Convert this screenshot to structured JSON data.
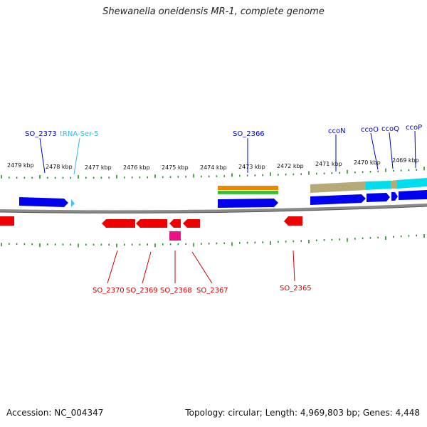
{
  "title": "Shewanella oneidensis MR-1, complete genome",
  "footer": {
    "accession": "Accession: NC_004347",
    "summary": "Topology: circular; Length: 4,969,803 bp; Genes: 4,448"
  },
  "colors": {
    "forward": "#0000ee",
    "reverse": "#ee0000",
    "trna": "#33ccee",
    "ticks": "#2a8a2a",
    "backbone": "#8a8a8a",
    "pink": "#ee1188",
    "orange": "#ee8800",
    "green": "#44bb44",
    "khaki": "#b5aa78",
    "cyan": "#00ddee"
  },
  "kbp_labels": [
    "2479 kbp",
    "2478 kbp",
    "2477 kbp",
    "2476 kbp",
    "2475 kbp",
    "2474 kbp",
    "2473 kbp",
    "2472 kbp",
    "2471 kbp",
    "2470 kbp",
    "2469 kbp"
  ],
  "top_labels": [
    {
      "text": "SO_2373",
      "color": "#0000cc"
    },
    {
      "text": "tRNA-Ser-5",
      "color": "#33bbdd"
    },
    {
      "text": "SO_2366",
      "color": "#0000cc"
    },
    {
      "text": "ccoN",
      "color": "#0000cc"
    },
    {
      "text": "ccoO",
      "color": "#0000cc"
    },
    {
      "text": "ccoQ",
      "color": "#0000cc"
    },
    {
      "text": "ccoP",
      "color": "#0000cc"
    }
  ],
  "bottom_labels": [
    {
      "text": "SO_2370",
      "color": "#cc0000"
    },
    {
      "text": "SO_2369",
      "color": "#cc0000"
    },
    {
      "text": "SO_2368",
      "color": "#cc0000"
    },
    {
      "text": "SO_2367",
      "color": "#cc0000"
    },
    {
      "text": "SO_2365",
      "color": "#cc0000"
    }
  ]
}
